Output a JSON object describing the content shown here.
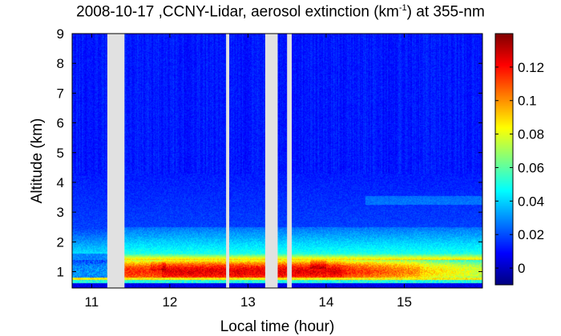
{
  "chart_data": {
    "type": "heatmap",
    "title_prefix": "2008-10-17 ,CCNY-Lidar, aerosol extinction (km",
    "title_sup": "-1",
    "title_suffix": ") at 355-nm",
    "xlabel": "Local time (hour)",
    "ylabel": "Altitude (km)",
    "xlim": [
      10.75,
      16.0
    ],
    "ylim": [
      0.45,
      9.0
    ],
    "x_ticks": [
      11,
      12,
      13,
      14,
      15
    ],
    "x_tick_labels": [
      "11",
      "12",
      "13",
      "14",
      "15"
    ],
    "y_ticks": [
      1,
      2,
      3,
      4,
      5,
      6,
      7,
      8,
      9
    ],
    "y_tick_labels": [
      "1",
      "2",
      "3",
      "4",
      "5",
      "6",
      "7",
      "8",
      "9"
    ],
    "colorbar": {
      "range": [
        -0.01,
        0.14
      ],
      "ticks": [
        0,
        0.02,
        0.04,
        0.06,
        0.08,
        0.1,
        0.12
      ],
      "tick_labels": [
        "0",
        "0.02",
        "0.04",
        "0.06",
        "0.08",
        "0.1",
        "0.12"
      ],
      "colormap": "jet"
    },
    "data_gaps_hours": [
      [
        11.2,
        11.42
      ],
      [
        12.72,
        12.76
      ],
      [
        13.22,
        13.38
      ],
      [
        13.5,
        13.56
      ]
    ],
    "gap_color": "#e1e1e1",
    "aerosol_layers_km": {
      "surface_peak": [
        0.75,
        1.35
      ],
      "mixed_layer_top": 2.4,
      "elevated_layer": 3.4
    }
  }
}
